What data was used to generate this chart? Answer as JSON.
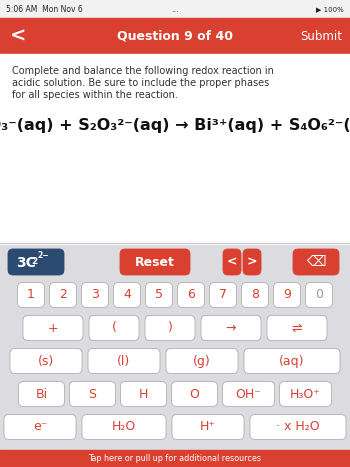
{
  "status_bar_text": "5:06 AM  Mon Nov 6",
  "dots": "...",
  "status_bar_right": "▶ 100%",
  "header_color": "#D94030",
  "header_text": "Question 9 of 40",
  "header_left": "<",
  "header_right": "Submit",
  "body_bg": "#FFFFFF",
  "instruction_text": "Complete and balance the following redox reaction in\nacidic solution. Be sure to include the proper phases\nfor all species within the reaction.",
  "keyboard_bg": "#DCDCE0",
  "red_color": "#D94030",
  "dark_blue": "#2B4A6F",
  "button_bg": "#FFFFFF",
  "button_border": "#C0C0C0",
  "bottom_bar_color": "#D94030",
  "bottom_bar_text": "Tap here or pull up for additional resources"
}
